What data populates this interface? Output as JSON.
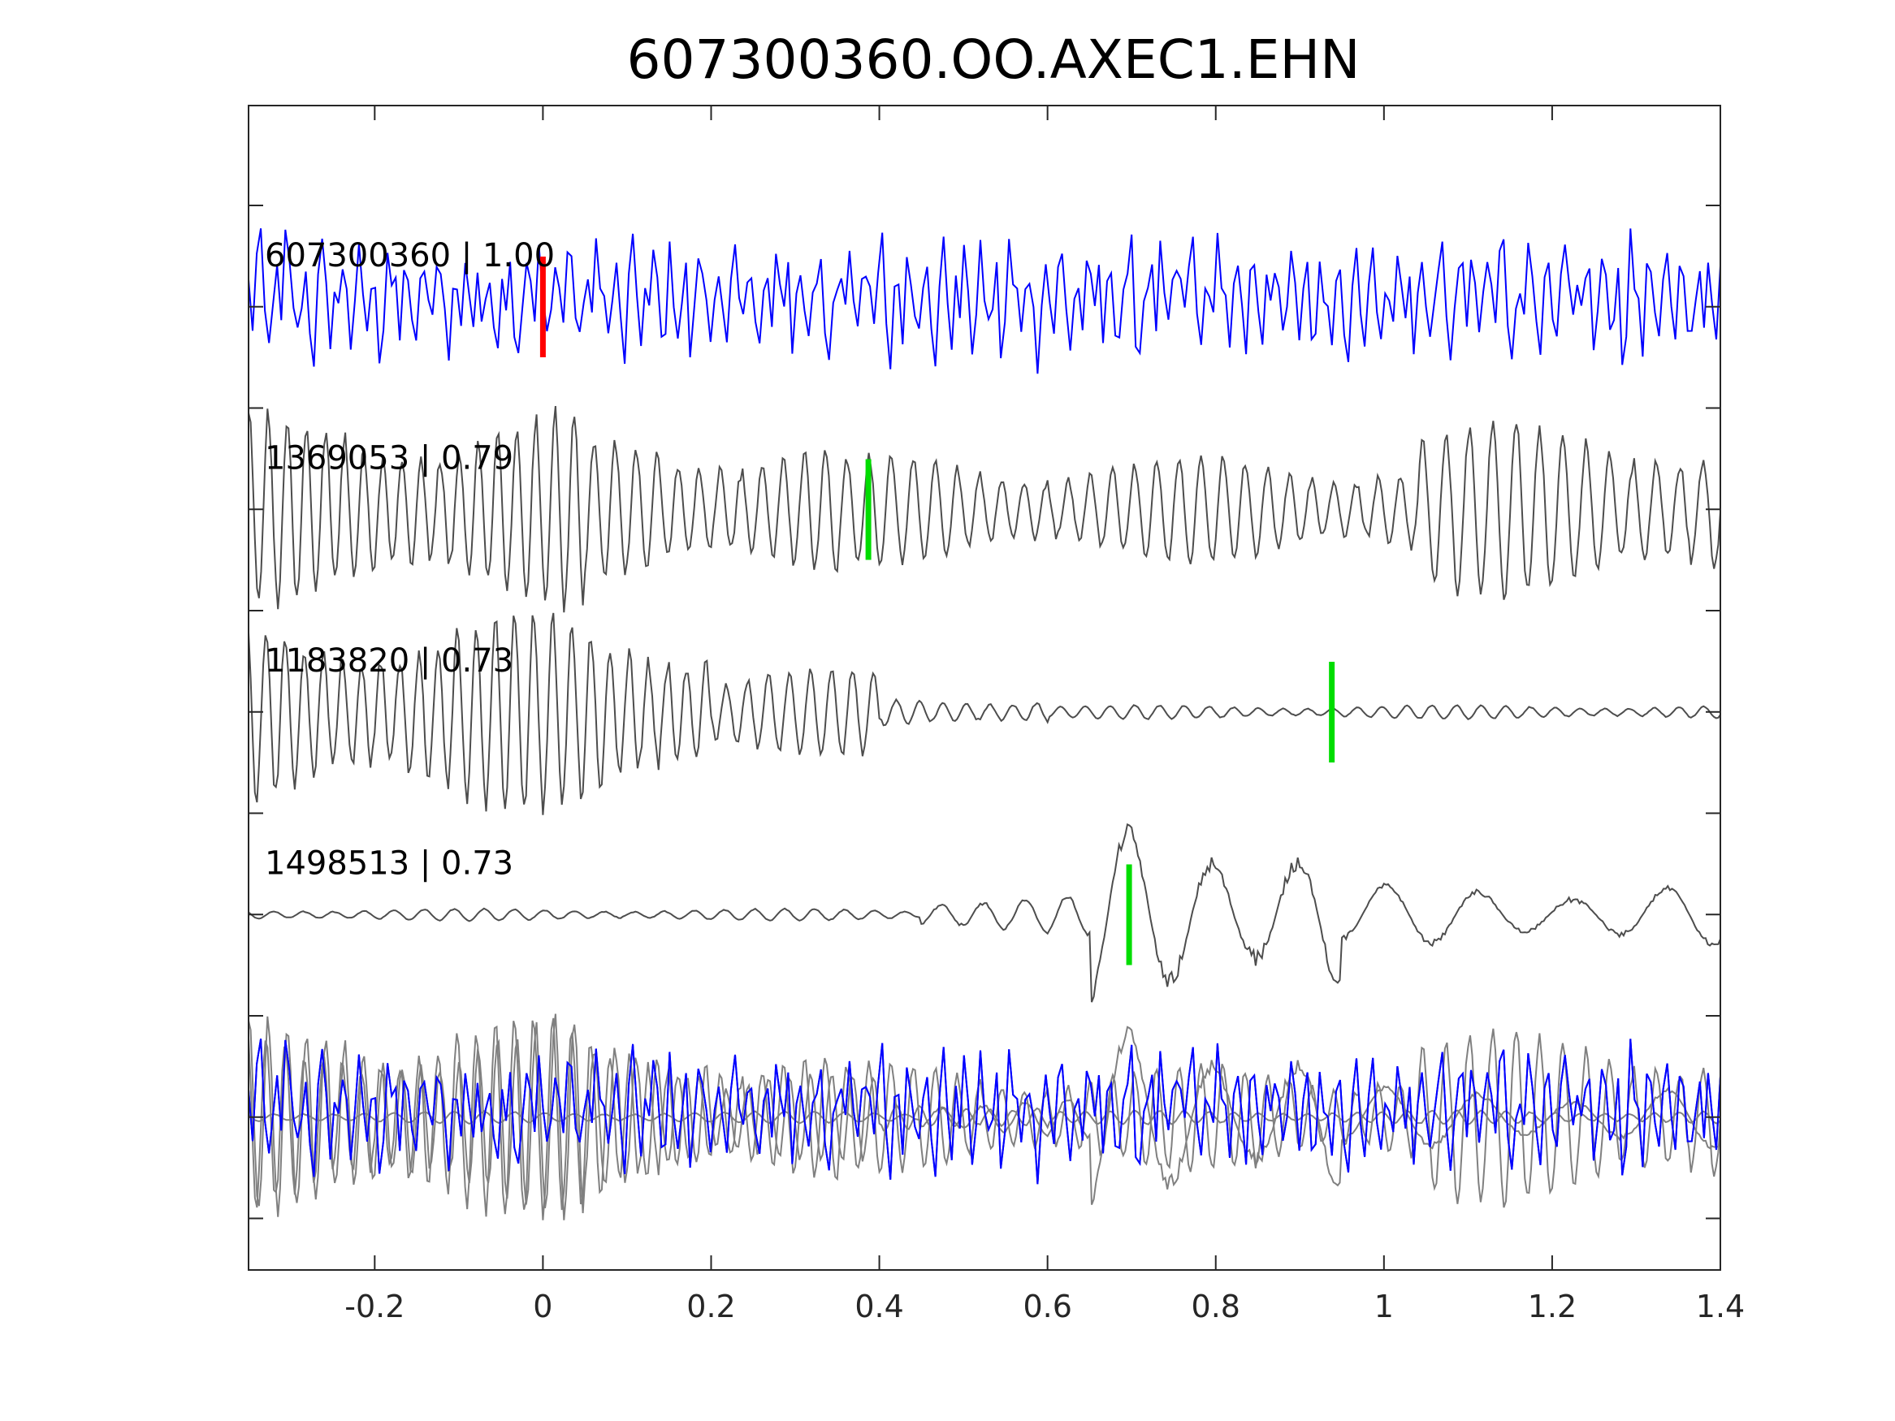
{
  "chart_data": {
    "type": "line",
    "title": "607300360.OO.AXEC1.EHN",
    "xlabel": "",
    "ylabel": "",
    "xlim": [
      -0.35,
      1.4
    ],
    "xticks": [
      -0.2,
      0,
      0.2,
      0.4,
      0.6,
      0.8,
      1,
      1.2,
      1.4
    ],
    "xtick_labels": [
      "-0.2",
      "0",
      "0.2",
      "0.4",
      "0.6",
      "0.8",
      "1",
      "1.2",
      "1.4"
    ],
    "grid": false,
    "legend": "none",
    "colors": {
      "reference": "#0000ff",
      "match": "#4d4d4d",
      "overlay_match": "#808080",
      "ref_pick": "#ff0000",
      "match_pick": "#00dd00",
      "axes": "#262626"
    },
    "traces": [
      {
        "id": "607300360",
        "label": "607300360 | 1.00",
        "correlation": 1.0,
        "role": "reference",
        "pick_time": 0.0,
        "pick_color": "red",
        "waveform": {
          "style": "noise",
          "samples": [
            0.4,
            -0.3,
            0.9,
            1.1,
            -0.2,
            -0.8,
            0.3,
            0.5,
            -0.4,
            1.2,
            0.7,
            0.1,
            -0.6,
            0.2,
            0.6,
            -0.3,
            -0.9,
            0.4,
            1.0,
            0.2,
            -0.5,
            0.3,
            -0.1,
            0.8,
            0.5,
            -0.7,
            -0.2,
            0.9,
            0.3,
            -0.4,
            0.1,
            0.6,
            -0.8,
            -0.3,
            1.1,
            0.4,
            0.2,
            -0.6,
            0.5,
            0.7,
            -0.2,
            -0.9,
            0.3,
            0.8,
            0.1,
            -0.4,
            0.6,
            0.9,
            -0.1,
            -0.7,
            0.2,
            0.4,
            -0.5,
            1.0,
            0.3,
            -0.3,
            0.7,
            -0.6,
            0.2,
            0.8,
            -0.2,
            -0.5,
            0.4,
            0.3,
            1.0,
            -0.4,
            -0.8,
            0.2,
            0.6,
            0.5,
            -0.3,
            0.9,
            0.1,
            -0.6,
            0.3,
            0.7
          ]
        }
      },
      {
        "id": "1369053",
        "label": "1369053 | 0.79",
        "correlation": 0.79,
        "role": "match",
        "pick_time": 0.387,
        "pick_color": "green",
        "waveform": {
          "style": "oscillation",
          "segments": [
            {
              "t_start": -0.35,
              "t_end": 0.05,
              "amplitude": 1.0,
              "frequency_hz": 44
            },
            {
              "t_start": 0.05,
              "t_end": 0.35,
              "amplitude": 0.75,
              "frequency_hz": 40
            },
            {
              "t_start": 0.35,
              "t_end": 1.04,
              "amplitude": 0.55,
              "frequency_hz": 38
            },
            {
              "t_start": 1.04,
              "t_end": 1.4,
              "amplitude": 0.9,
              "frequency_hz": 36
            }
          ]
        }
      },
      {
        "id": "1183820",
        "label": "1183820 | 0.73",
        "correlation": 0.73,
        "role": "match",
        "pick_time": 0.938,
        "pick_color": "green",
        "waveform": {
          "style": "oscillation",
          "segments": [
            {
              "t_start": -0.35,
              "t_end": 0.2,
              "amplitude": 1.0,
              "frequency_hz": 44
            },
            {
              "t_start": 0.2,
              "t_end": 0.4,
              "amplitude": 0.45,
              "frequency_hz": 40
            },
            {
              "t_start": 0.4,
              "t_end": 0.6,
              "amplitude": 0.15,
              "frequency_hz": 36
            },
            {
              "t_start": 0.6,
              "t_end": 1.4,
              "amplitude": 0.07,
              "frequency_hz": 34
            }
          ]
        }
      },
      {
        "id": "1498513",
        "label": "1498513 | 0.73",
        "correlation": 0.73,
        "role": "match",
        "pick_time": 0.697,
        "pick_color": "green",
        "waveform": {
          "style": "oscillation",
          "segments": [
            {
              "t_start": -0.35,
              "t_end": 0.45,
              "amplitude": 0.06,
              "frequency_hz": 28
            },
            {
              "t_start": 0.45,
              "t_end": 0.65,
              "amplitude": 0.2,
              "frequency_hz": 20
            },
            {
              "t_start": 0.65,
              "t_end": 0.95,
              "amplitude": 0.9,
              "frequency_hz": 10
            },
            {
              "t_start": 0.95,
              "t_end": 1.4,
              "amplitude": 0.3,
              "frequency_hz": 9
            }
          ]
        }
      }
    ],
    "overlay": {
      "description_shown": false,
      "includes": [
        "607300360",
        "1369053",
        "1183820",
        "1498513"
      ]
    }
  }
}
